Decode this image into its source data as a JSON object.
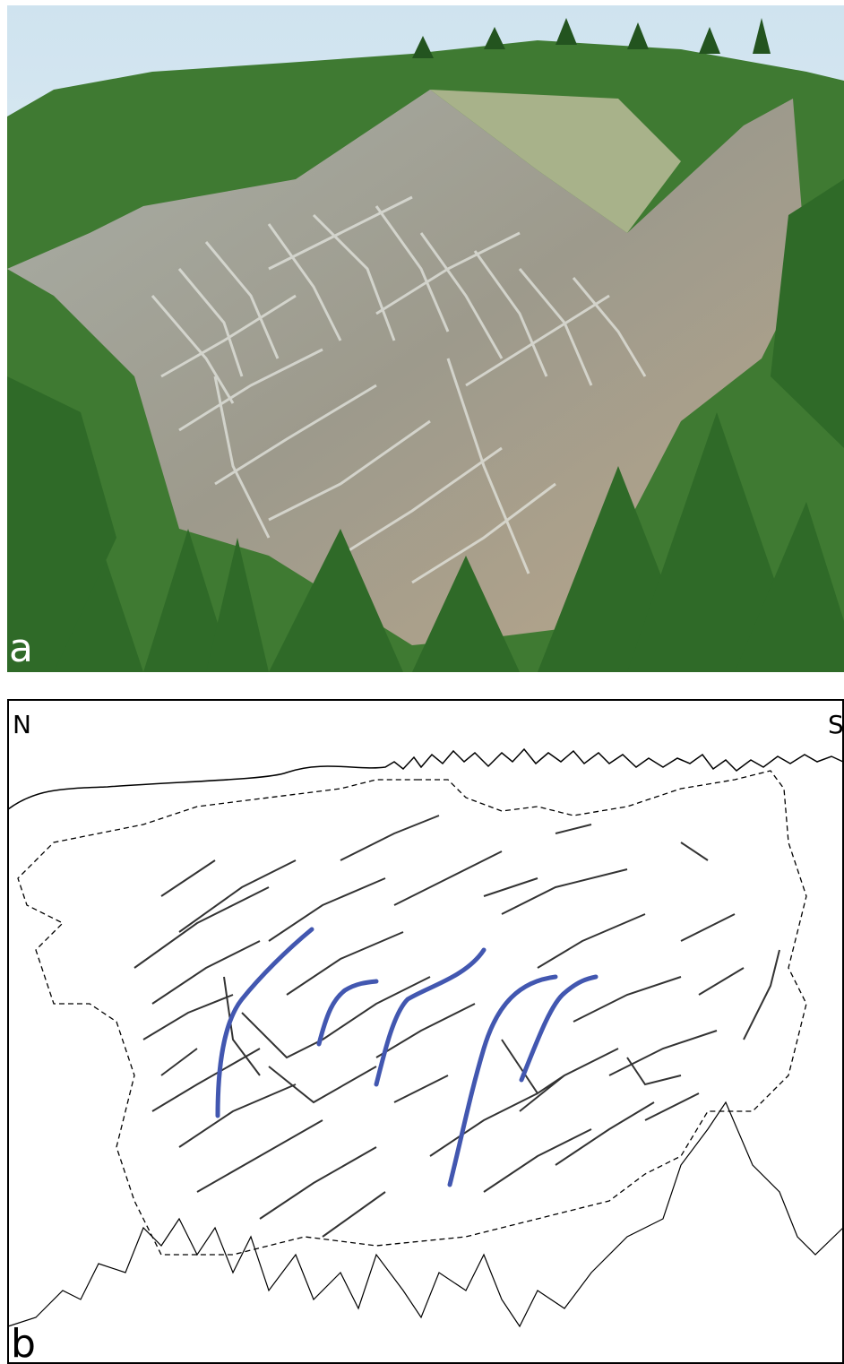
{
  "panel_a": {
    "label": "a"
  },
  "panel_b": {
    "label": "b",
    "left_label": "N",
    "right_label": "S"
  }
}
